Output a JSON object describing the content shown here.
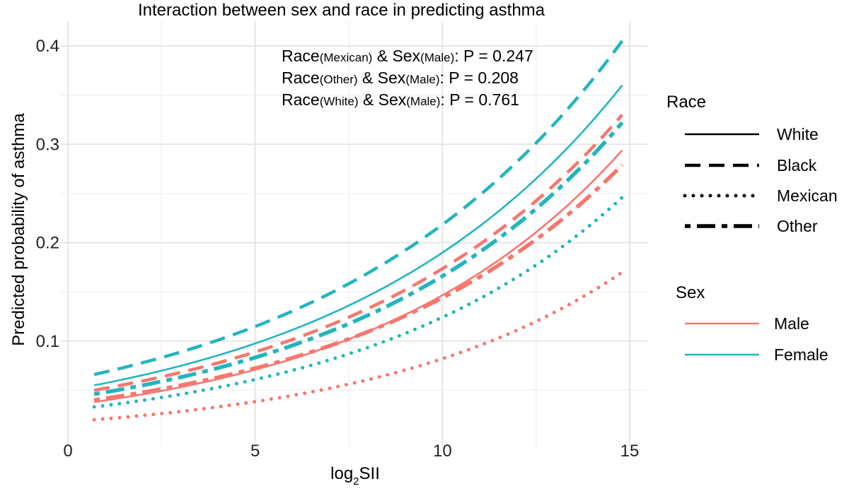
{
  "chart_data": {
    "type": "line",
    "title": "Interaction between sex and race in predicting asthma",
    "xlabel_main": "log",
    "xlabel_sub": "2",
    "xlabel_tail": "SII",
    "ylabel": "Predicted probability of asthma",
    "xlim": [
      0,
      15
    ],
    "ylim": [
      0,
      0.42
    ],
    "x_ticks": [
      0,
      5,
      10,
      15
    ],
    "x_tick_labels": [
      "0",
      "5",
      "10",
      "15"
    ],
    "y_ticks": [
      0.1,
      0.2,
      0.3,
      0.4
    ],
    "y_tick_labels": [
      "0.1",
      "0.2",
      "0.3",
      "0.4"
    ],
    "grid": true,
    "annotations": [
      {
        "a": "Race",
        "b": "(Mexican)",
        "c": " & Sex",
        "d": "(Male)",
        "e": ": P = 0.247"
      },
      {
        "a": "Race",
        "b": "(Other)",
        "c": " & Sex",
        "d": "(Male)",
        "e": ": P = 0.208"
      },
      {
        "a": "Race",
        "b": "(White)",
        "c": " & Sex",
        "d": "(Male)",
        "e": ": P = 0.761"
      }
    ],
    "legend_race": {
      "title": "Race",
      "items": [
        {
          "label": "White",
          "style": "solid"
        },
        {
          "label": "Black",
          "style": "dashed"
        },
        {
          "label": "Mexican",
          "style": "dotted"
        },
        {
          "label": "Other",
          "style": "dotdash"
        }
      ]
    },
    "legend_sex": {
      "title": "Sex",
      "items": [
        {
          "label": "Male",
          "color": "#F8766D"
        },
        {
          "label": "Female",
          "color": "#22B5BF"
        }
      ]
    },
    "legend_placement": "right",
    "series": [
      {
        "race": "White",
        "sex": "Female",
        "color": "#22B5BF",
        "style": "solid",
        "x": [
          0.7,
          14.8
        ],
        "y": [
          0.055,
          0.36
        ]
      },
      {
        "race": "Black",
        "sex": "Female",
        "color": "#22B5BF",
        "style": "dashed",
        "x": [
          0.7,
          14.8
        ],
        "y": [
          0.066,
          0.405
        ]
      },
      {
        "race": "Other",
        "sex": "Female",
        "color": "#22B5BF",
        "style": "dotdash",
        "x": [
          0.7,
          14.8
        ],
        "y": [
          0.046,
          0.322
        ]
      },
      {
        "race": "Mexican",
        "sex": "Female",
        "color": "#22B5BF",
        "style": "dotted",
        "x": [
          0.7,
          14.8
        ],
        "y": [
          0.033,
          0.246
        ]
      },
      {
        "race": "White",
        "sex": "Male",
        "color": "#F8766D",
        "style": "solid",
        "x": [
          0.7,
          14.8
        ],
        "y": [
          0.038,
          0.294
        ]
      },
      {
        "race": "Black",
        "sex": "Male",
        "color": "#F8766D",
        "style": "dashed",
        "x": [
          0.7,
          14.8
        ],
        "y": [
          0.05,
          0.33
        ]
      },
      {
        "race": "Other",
        "sex": "Male",
        "color": "#F8766D",
        "style": "dotdash",
        "x": [
          0.7,
          14.8
        ],
        "y": [
          0.04,
          0.279
        ]
      },
      {
        "race": "Mexican",
        "sex": "Male",
        "color": "#F8766D",
        "style": "dotted",
        "x": [
          0.7,
          14.8
        ],
        "y": [
          0.02,
          0.17
        ]
      }
    ]
  }
}
